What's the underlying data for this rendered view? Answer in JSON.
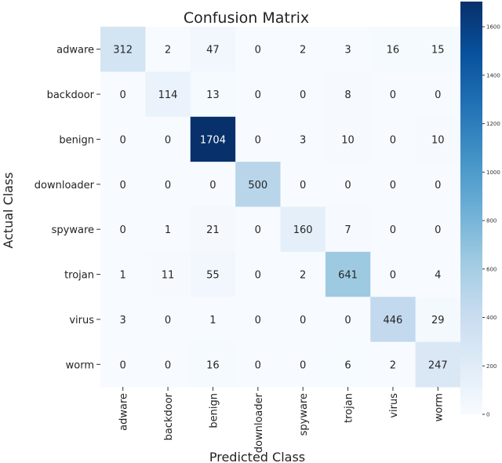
{
  "chart_data": {
    "type": "heatmap",
    "title": "Confusion Matrix",
    "xlabel": "Predicted Class",
    "ylabel": "Actual Class",
    "x_categories": [
      "adware",
      "backdoor",
      "benign",
      "downloader",
      "spyware",
      "trojan",
      "virus",
      "worm"
    ],
    "y_categories": [
      "adware",
      "backdoor",
      "benign",
      "downloader",
      "spyware",
      "trojan",
      "virus",
      "worm"
    ],
    "values": [
      [
        312,
        2,
        47,
        0,
        2,
        3,
        16,
        15
      ],
      [
        0,
        114,
        13,
        0,
        0,
        8,
        0,
        0
      ],
      [
        0,
        0,
        1704,
        0,
        3,
        10,
        0,
        10
      ],
      [
        0,
        0,
        0,
        500,
        0,
        0,
        0,
        0
      ],
      [
        0,
        1,
        21,
        0,
        160,
        7,
        0,
        0
      ],
      [
        1,
        11,
        55,
        0,
        2,
        641,
        0,
        4
      ],
      [
        3,
        0,
        1,
        0,
        0,
        0,
        446,
        29
      ],
      [
        0,
        0,
        16,
        0,
        0,
        6,
        2,
        247
      ]
    ],
    "colorscale": "Blues",
    "color_range": [
      0,
      1704
    ],
    "colorbar_ticks": [
      0,
      200,
      400,
      600,
      800,
      1000,
      1200,
      1400,
      1600
    ]
  }
}
